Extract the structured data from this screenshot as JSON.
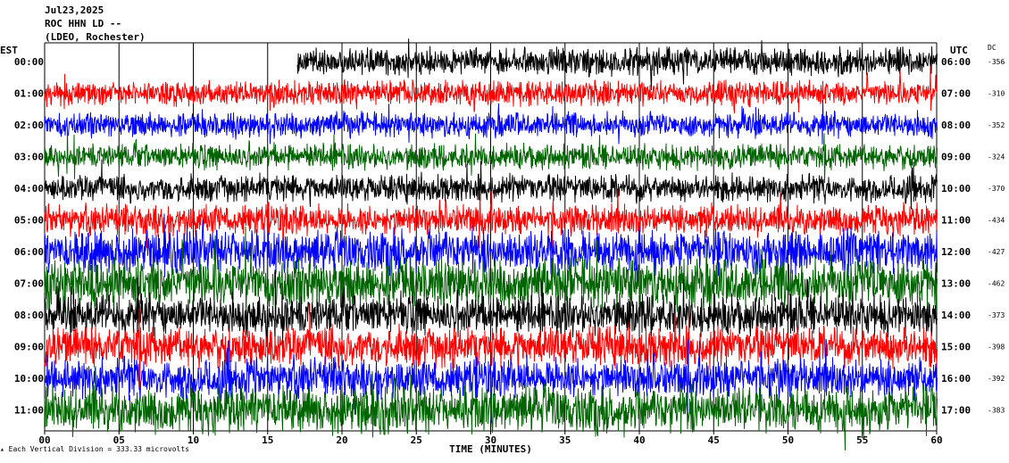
{
  "header": {
    "date": "Jul23,2025",
    "station": "ROC HHN LD --",
    "network": "(LDEO, Rochester)"
  },
  "chart_data": {
    "type": "line",
    "title": "",
    "xlabel": "TIME (MINUTES)",
    "left_axis_label": "EST",
    "right_axis_label": "UTC",
    "dc_label": "DC",
    "xlim": [
      0,
      60
    ],
    "x_ticks": [
      "00",
      "05",
      "10",
      "15",
      "20",
      "25",
      "30",
      "35",
      "40",
      "45",
      "50",
      "55",
      "60"
    ],
    "grid": true,
    "rows": [
      {
        "est": "00:00",
        "utc": "06:00",
        "dc": "-356",
        "color": "#000000",
        "start_min": 17,
        "amp": 0.35
      },
      {
        "est": "01:00",
        "utc": "07:00",
        "dc": "-310",
        "color": "#ff0000",
        "start_min": 0,
        "amp": 0.3
      },
      {
        "est": "02:00",
        "utc": "08:00",
        "dc": "-352",
        "color": "#0000ff",
        "start_min": 0,
        "amp": 0.3
      },
      {
        "est": "03:00",
        "utc": "09:00",
        "dc": "-324",
        "color": "#006400",
        "start_min": 0,
        "amp": 0.3
      },
      {
        "est": "04:00",
        "utc": "10:00",
        "dc": "-370",
        "color": "#000000",
        "start_min": 0,
        "amp": 0.35
      },
      {
        "est": "05:00",
        "utc": "11:00",
        "dc": "-434",
        "color": "#ff0000",
        "start_min": 0,
        "amp": 0.45
      },
      {
        "est": "06:00",
        "utc": "12:00",
        "dc": "-427",
        "color": "#0000ff",
        "start_min": 0,
        "amp": 0.8
      },
      {
        "est": "07:00",
        "utc": "13:00",
        "dc": "-462",
        "color": "#006400",
        "start_min": 0,
        "amp": 1.0
      },
      {
        "est": "08:00",
        "utc": "14:00",
        "dc": "-373",
        "color": "#000000",
        "start_min": 0,
        "amp": 0.7
      },
      {
        "est": "09:00",
        "utc": "15:00",
        "dc": "-398",
        "color": "#ff0000",
        "start_min": 0,
        "amp": 0.7
      },
      {
        "est": "10:00",
        "utc": "16:00",
        "dc": "-392",
        "color": "#0000ff",
        "start_min": 0,
        "amp": 0.7
      },
      {
        "est": "11:00",
        "utc": "17:00",
        "dc": "-383",
        "color": "#006400",
        "start_min": 0,
        "amp": 0.9
      }
    ]
  },
  "footer": {
    "scale_note": "Each Vertical Division =  333.33 microvolts"
  }
}
